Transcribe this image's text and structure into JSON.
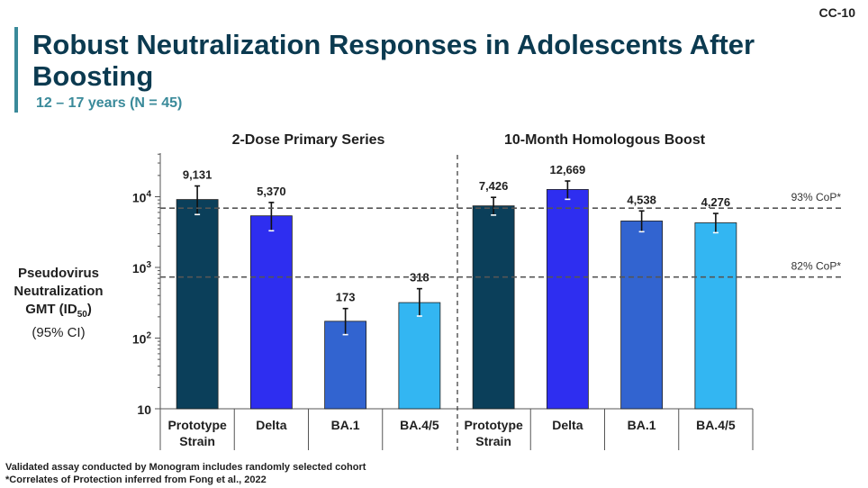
{
  "slide_id": "CC-10",
  "title": "Robust Neutralization Responses in Adolescents After Boosting",
  "subtitle": "12 – 17 years (N = 45)",
  "ylabel": {
    "line1": "Pseudovirus",
    "line2": "Neutralization",
    "line3_main": "GMT (ID",
    "line3_sub": "50",
    "line3_end": ")",
    "line4": "(95% CI)"
  },
  "footnotes": [
    "Validated assay conducted by Monogram includes randomly selected cohort",
    "*Correlates of Protection inferred from Fong et al., 2022"
  ],
  "chart_data": {
    "type": "bar",
    "yscale": "log",
    "ylim": [
      10,
      40000
    ],
    "yticks": [
      {
        "value": 10,
        "base": "10",
        "exp": ""
      },
      {
        "value": 100,
        "base": "10",
        "exp": "2"
      },
      {
        "value": 1000,
        "base": "10",
        "exp": "3"
      },
      {
        "value": 10000,
        "base": "10",
        "exp": "4"
      }
    ],
    "groups": [
      {
        "title": "2-Dose Primary Series",
        "bars": [
          {
            "category": "Prototype Strain",
            "value": 9131,
            "label": "9,131",
            "ci": [
              5600,
              14200
            ],
            "color": "#0b3f5a"
          },
          {
            "category": "Delta",
            "value": 5370,
            "label": "5,370",
            "ci": [
              3300,
              8300
            ],
            "color": "#2e2ef0"
          },
          {
            "category": "BA.1",
            "value": 173,
            "label": "173",
            "ci": [
              112,
              262
            ],
            "color": "#3264d0"
          },
          {
            "category": "BA.4/5",
            "value": 318,
            "label": "318",
            "ci": [
              205,
              500
            ],
            "color": "#33b6f2"
          }
        ]
      },
      {
        "title": "10-Month Homologous Boost",
        "bars": [
          {
            "category": "Prototype Strain",
            "value": 7426,
            "label": "7,426",
            "ci": [
              5500,
              9800
            ],
            "color": "#0b3f5a"
          },
          {
            "category": "Delta",
            "value": 12669,
            "label": "12,669",
            "ci": [
              9200,
              16700
            ],
            "color": "#2e2ef0"
          },
          {
            "category": "BA.1",
            "value": 4538,
            "label": "4,538",
            "ci": [
              3200,
              6300
            ],
            "color": "#3264d0"
          },
          {
            "category": "BA.4/5",
            "value": 4276,
            "label": "4,276",
            "ci": [
              3100,
              5800
            ],
            "color": "#33b6f2"
          }
        ]
      }
    ],
    "reference_lines": [
      {
        "value": 6900,
        "label": "93% CoP*"
      },
      {
        "value": 730,
        "label": "82% CoP*"
      }
    ]
  }
}
